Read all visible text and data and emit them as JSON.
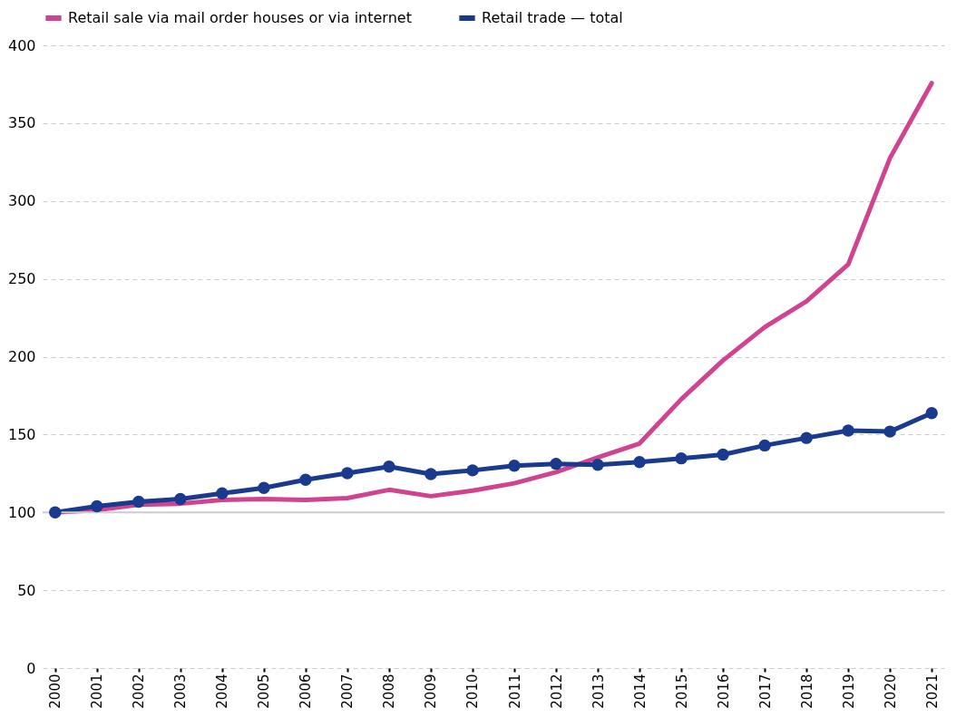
{
  "chart_data": {
    "type": "line",
    "categories": [
      "2000",
      "2001",
      "2002",
      "2003",
      "2004",
      "2005",
      "2006",
      "2007",
      "2008",
      "2009",
      "2010",
      "2011",
      "2012",
      "2013",
      "2014",
      "2015",
      "2016",
      "2017",
      "2018",
      "2019",
      "2020",
      "2021"
    ],
    "series": [
      {
        "name": "Retail sale via mail order houses or via internet",
        "color": "#d0448f",
        "marker": "none",
        "values": [
          100,
          101.5,
          105,
          105.6,
          108,
          108.6,
          108,
          109.2,
          114.5,
          110.4,
          114,
          118.7,
          125.8,
          135.3,
          144.2,
          172.7,
          197.6,
          219,
          235.6,
          259.3,
          327.6,
          375.7
        ]
      },
      {
        "name": "Retail trade — total",
        "color": "#1a3a8f",
        "marker": "circle",
        "values": [
          100,
          103.9,
          106.8,
          108.6,
          112.2,
          115.7,
          121,
          125.2,
          129.4,
          124.6,
          127,
          130,
          131.2,
          130.6,
          132.3,
          134.7,
          137.1,
          143,
          147.8,
          152.5,
          151.9,
          163.8
        ]
      }
    ],
    "ylim": [
      0,
      400
    ],
    "yticks": [
      0,
      50,
      100,
      150,
      200,
      250,
      300,
      350,
      400
    ],
    "grid": "y",
    "legend": "top left",
    "line_style": "solid",
    "ref_lines": [
      {
        "axis": "y",
        "value": 100,
        "color": "#cccccc",
        "line_style": "solid"
      }
    ]
  }
}
